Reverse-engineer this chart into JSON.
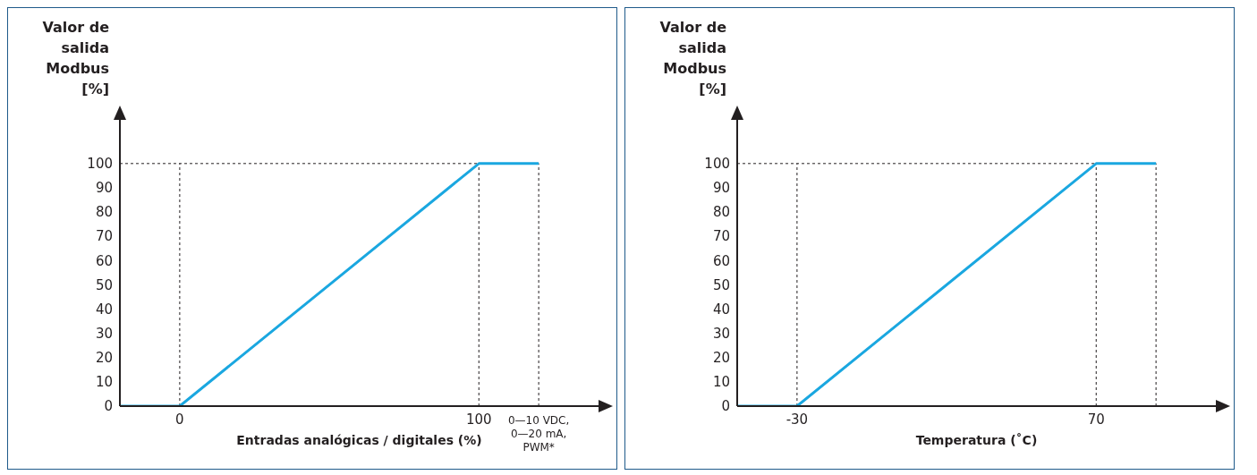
{
  "chart_data": [
    {
      "type": "line",
      "xlabel": "Entradas analógicas / digitales (%)",
      "ylabel": "Valor de salida Modbus [%]",
      "marker": "none",
      "xlim": [
        -20,
        140
      ],
      "xticks": [
        0,
        100,
        {
          "value": 120,
          "label": "0—10 VDC, 0—20 mA, PWM*"
        }
      ],
      "ylim": [
        0,
        118
      ],
      "yticks": [
        0,
        10,
        20,
        30,
        40,
        50,
        60,
        70,
        80,
        90,
        100
      ],
      "series": [
        {
          "color": "#1aa7e0",
          "x": [
            -20,
            0,
            100,
            120
          ],
          "values": [
            0,
            0,
            100,
            100
          ]
        }
      ],
      "ref_lines": [
        {
          "axis": "x",
          "value": 0,
          "color": "#231f20",
          "line_style": "dashed"
        },
        {
          "axis": "x",
          "value": 100,
          "color": "#231f20",
          "line_style": "dashed"
        },
        {
          "axis": "x",
          "value": 120,
          "color": "#231f20",
          "line_style": "dashed"
        },
        {
          "axis": "y",
          "value": 100,
          "color": "#231f20",
          "line_style": "dashed"
        }
      ]
    },
    {
      "type": "line",
      "xlabel": "Temperatura (˚C)",
      "ylabel": "Valor de salida Modbus [%]",
      "marker": "none",
      "xlim": [
        -50,
        110
      ],
      "xticks": [
        -30,
        70
      ],
      "ylim": [
        0,
        118
      ],
      "yticks": [
        0,
        10,
        20,
        30,
        40,
        50,
        60,
        70,
        80,
        90,
        100
      ],
      "series": [
        {
          "color": "#1aa7e0",
          "x": [
            -50,
            -30,
            70,
            90
          ],
          "values": [
            0,
            0,
            100,
            100
          ]
        }
      ],
      "ref_lines": [
        {
          "axis": "x",
          "value": -30,
          "color": "#231f20",
          "line_style": "dashed"
        },
        {
          "axis": "x",
          "value": 70,
          "color": "#231f20",
          "line_style": "dashed"
        },
        {
          "axis": "x",
          "value": 90,
          "color": "#231f20",
          "line_style": "dashed"
        },
        {
          "axis": "y",
          "value": 100,
          "color": "#231f20",
          "line_style": "dashed"
        }
      ]
    }
  ]
}
